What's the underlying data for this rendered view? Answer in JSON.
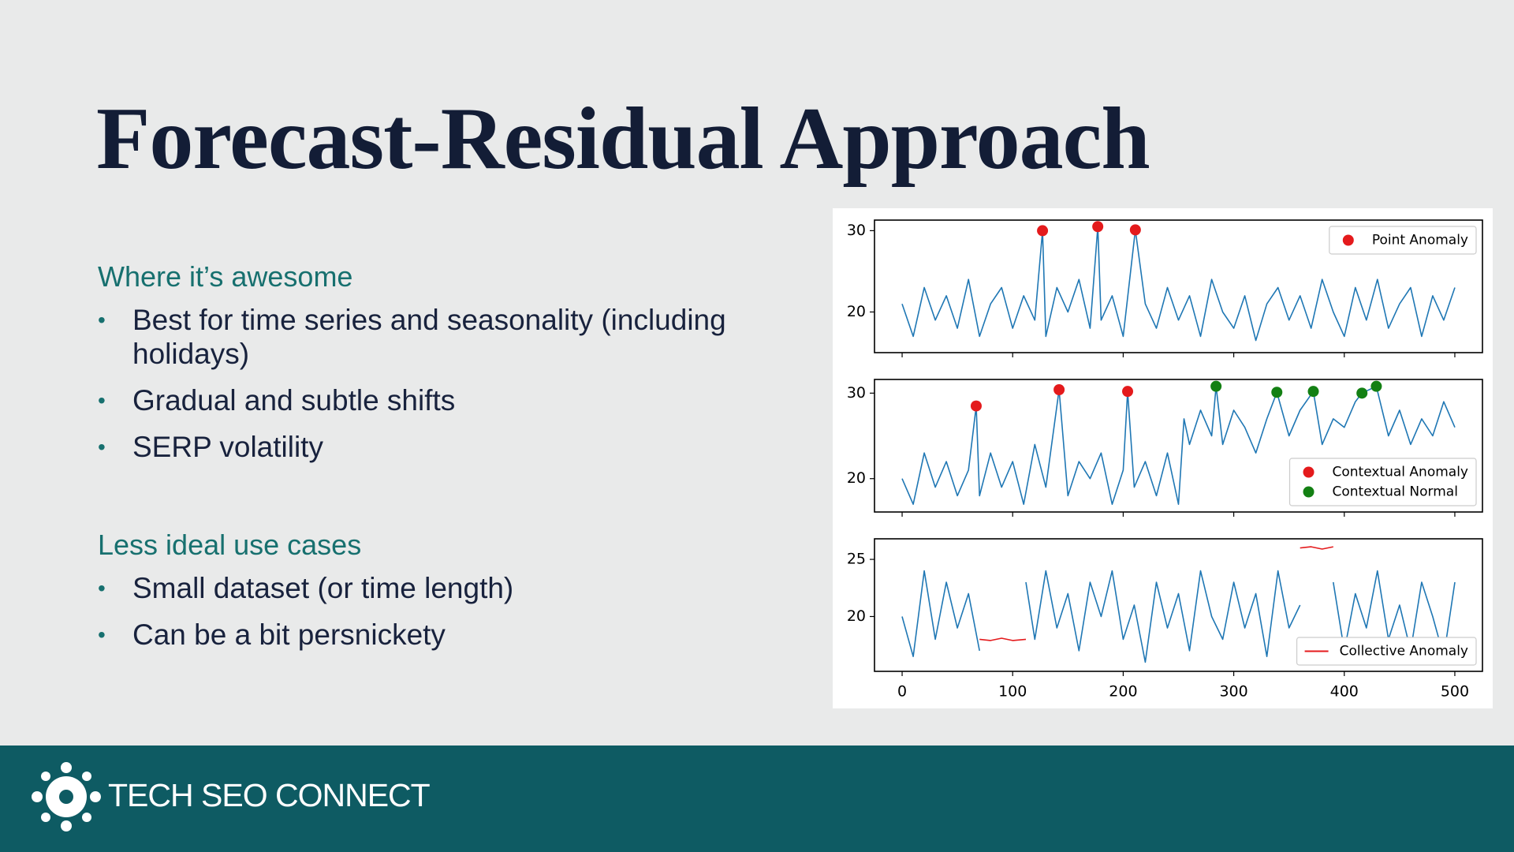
{
  "header": {
    "title": "Forecast-Residual Approach"
  },
  "sections": [
    {
      "heading": "Where it’s awesome",
      "bullets": [
        "Best for time series and seasonality (including holidays)",
        "Gradual and subtle shifts",
        "SERP volatility"
      ]
    },
    {
      "heading": "Less ideal use cases",
      "bullets": [
        "Small dataset (or time length)",
        "Can be a bit persnickety"
      ]
    }
  ],
  "footer": {
    "brand": "TECH SEO CONNECT"
  },
  "chart_data": [
    {
      "type": "line",
      "xlim": [
        -25,
        525
      ],
      "ylim": [
        15,
        31.3
      ],
      "xticks": [
        0,
        100,
        200,
        300,
        400,
        500
      ],
      "yticks": [
        20,
        30
      ],
      "show_xtick_labels": false,
      "legend": "upper right",
      "series": [
        {
          "style": "line",
          "color": "#1f77b4",
          "x": [
            0,
            10,
            20,
            30,
            40,
            50,
            60,
            70,
            80,
            90,
            100,
            110,
            120,
            127,
            130,
            140,
            150,
            160,
            170,
            177,
            180,
            190,
            200,
            211,
            220,
            230,
            240,
            250,
            260,
            270,
            280,
            290,
            300,
            310,
            320,
            330,
            340,
            350,
            360,
            370,
            380,
            390,
            400,
            410,
            420,
            430,
            440,
            450,
            460,
            470,
            480,
            490,
            500
          ],
          "values": [
            21,
            17,
            23,
            19,
            22,
            18,
            24,
            17,
            21,
            23,
            18,
            22,
            19,
            30,
            17,
            23,
            20,
            24,
            18,
            30.5,
            19,
            22,
            17,
            30.1,
            21,
            18,
            23,
            19,
            22,
            17,
            24,
            20,
            18,
            22,
            16.5,
            21,
            23,
            19,
            22,
            18,
            24,
            20,
            17,
            23,
            19,
            24,
            18,
            21,
            23,
            17,
            22,
            19,
            23
          ]
        },
        {
          "style": "scatter",
          "name": "Point Anomaly",
          "color": "#e41a1c",
          "x": [
            127,
            177,
            211
          ],
          "values": [
            30,
            30.5,
            30.1
          ]
        }
      ]
    },
    {
      "type": "line",
      "xlim": [
        -25,
        525
      ],
      "ylim": [
        16.1,
        31.6
      ],
      "xticks": [
        0,
        100,
        200,
        300,
        400,
        500
      ],
      "yticks": [
        20,
        30
      ],
      "show_xtick_labels": false,
      "legend": "lower right",
      "series": [
        {
          "style": "line",
          "color": "#1f77b4",
          "x": [
            0,
            10,
            20,
            30,
            40,
            50,
            60,
            67,
            70,
            80,
            90,
            100,
            110,
            120,
            130,
            142,
            150,
            160,
            170,
            180,
            190,
            200,
            204,
            210,
            220,
            230,
            240,
            250,
            255,
            260,
            270,
            280,
            284,
            290,
            300,
            310,
            320,
            330,
            339,
            350,
            360,
            372,
            380,
            390,
            400,
            410,
            416,
            429,
            440,
            450,
            460,
            470,
            480,
            490,
            500
          ],
          "values": [
            20,
            17,
            23,
            19,
            22,
            18,
            21,
            28.5,
            18,
            23,
            19,
            22,
            17,
            24,
            19,
            30.4,
            18,
            22,
            20,
            23,
            17,
            21,
            30.2,
            19,
            22,
            18,
            23,
            17,
            27,
            24,
            28,
            25,
            30.8,
            24,
            28,
            26,
            23,
            27,
            30.1,
            25,
            28,
            30.2,
            24,
            27,
            26,
            29,
            30,
            30.8,
            25,
            28,
            24,
            27,
            25,
            29,
            26
          ]
        },
        {
          "style": "scatter",
          "name": "Contextual Anomaly",
          "color": "#e41a1c",
          "x": [
            67,
            142,
            204
          ],
          "values": [
            28.5,
            30.4,
            30.2
          ]
        },
        {
          "style": "scatter",
          "name": "Contextual Normal",
          "color": "#138013",
          "x": [
            284,
            339,
            372,
            416,
            429
          ],
          "values": [
            30.8,
            30.1,
            30.2,
            30,
            30.8
          ]
        }
      ]
    },
    {
      "type": "line",
      "xlim": [
        -25,
        525
      ],
      "ylim": [
        15.2,
        26.8
      ],
      "xticks": [
        0,
        100,
        200,
        300,
        400,
        500
      ],
      "yticks": [
        20,
        25
      ],
      "show_xtick_labels": true,
      "legend": "lower right",
      "series": [
        {
          "style": "line",
          "color": "#1f77b4",
          "x": [
            0,
            10,
            20,
            30,
            40,
            50,
            60,
            70,
            90,
            112,
            120,
            130,
            140,
            150,
            160,
            170,
            180,
            190,
            200,
            210,
            220,
            230,
            240,
            250,
            260,
            270,
            280,
            290,
            300,
            310,
            320,
            330,
            340,
            350,
            360,
            375,
            390,
            400,
            410,
            420,
            430,
            440,
            450,
            460,
            470,
            480,
            490,
            500
          ],
          "values": [
            20,
            16.5,
            24,
            18,
            23,
            19,
            22,
            17,
            null,
            23,
            18,
            24,
            19,
            22,
            17,
            23,
            20,
            24,
            18,
            21,
            16,
            23,
            19,
            22,
            17,
            24,
            20,
            18,
            23,
            19,
            22,
            16.5,
            24,
            19,
            21,
            null,
            23,
            17,
            22,
            19,
            24,
            18,
            21,
            17,
            23,
            20,
            16.5,
            23
          ]
        },
        {
          "style": "line",
          "name": "Collective Anomaly",
          "color": "#e41a1c",
          "x": [
            70,
            80,
            90,
            100,
            112,
            240,
            360,
            370,
            380,
            390
          ],
          "values": [
            18,
            17.9,
            18.1,
            17.9,
            18,
            null,
            26,
            26.1,
            25.9,
            26.1
          ]
        }
      ]
    }
  ]
}
